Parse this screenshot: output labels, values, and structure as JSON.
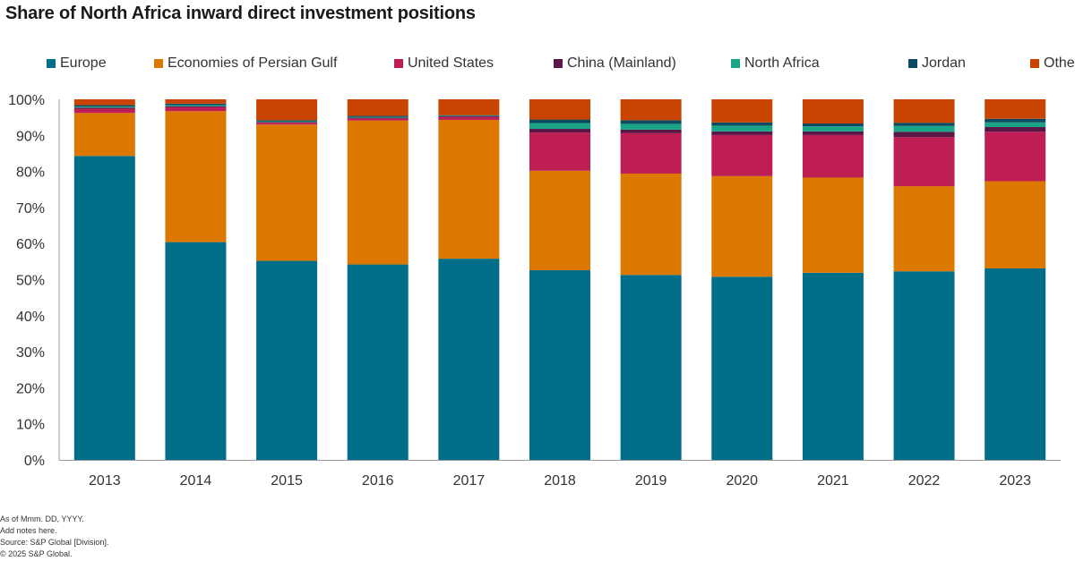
{
  "title": "Share of North Africa inward direct investment positions",
  "footnotes": {
    "as_of": "As of Mmm. DD, YYYY.",
    "notes": "Add notes here.",
    "source": "Source: S&P Global [Division].",
    "copyright": "© 2025 S&P Global."
  },
  "chart_data": {
    "type": "bar",
    "stacked": true,
    "title": "Share of North Africa inward direct investment positions",
    "xlabel": "",
    "ylabel": "",
    "ylim": [
      0,
      100
    ],
    "y_ticks": [
      "0%",
      "10%",
      "20%",
      "30%",
      "40%",
      "50%",
      "60%",
      "70%",
      "80%",
      "90%",
      "100%"
    ],
    "grid": false,
    "legend_position": "top",
    "categories": [
      "2013",
      "2014",
      "2015",
      "2016",
      "2017",
      "2018",
      "2019",
      "2020",
      "2021",
      "2022",
      "2023"
    ],
    "series": [
      {
        "name": "Europe",
        "color": "#006d89",
        "values": [
          84.3,
          60.4,
          55.2,
          54.2,
          55.8,
          52.6,
          51.3,
          50.8,
          51.9,
          52.3,
          53.1
        ]
      },
      {
        "name": "Economies of Persian Gulf",
        "color": "#dc7800",
        "values": [
          11.9,
          36.3,
          37.8,
          39.9,
          38.5,
          27.6,
          28.1,
          27.9,
          26.4,
          23.6,
          24.2
        ]
      },
      {
        "name": "United States",
        "color": "#be1e54",
        "values": [
          1.2,
          1.1,
          0.5,
          0.6,
          0.8,
          10.6,
          11.2,
          11.4,
          11.8,
          13.6,
          13.7
        ]
      },
      {
        "name": "China (Mainland)",
        "color": "#5a1446",
        "values": [
          0.3,
          0.3,
          0.2,
          0.2,
          0.2,
          1.0,
          1.0,
          1.0,
          1.0,
          1.5,
          1.3
        ]
      },
      {
        "name": "North Africa",
        "color": "#19a487",
        "values": [
          0.3,
          0.3,
          0.2,
          0.2,
          0.1,
          1.6,
          1.6,
          1.6,
          1.4,
          1.6,
          1.3
        ]
      },
      {
        "name": "Jordan",
        "color": "#0c4a5f",
        "values": [
          0.4,
          0.4,
          0.3,
          0.3,
          0.2,
          1.0,
          1.0,
          0.9,
          0.8,
          0.9,
          1.0
        ]
      },
      {
        "name": "Other",
        "color": "#c84400",
        "values": [
          1.6,
          1.2,
          5.8,
          4.6,
          4.4,
          5.6,
          5.8,
          6.4,
          6.7,
          6.5,
          5.4
        ]
      }
    ]
  }
}
